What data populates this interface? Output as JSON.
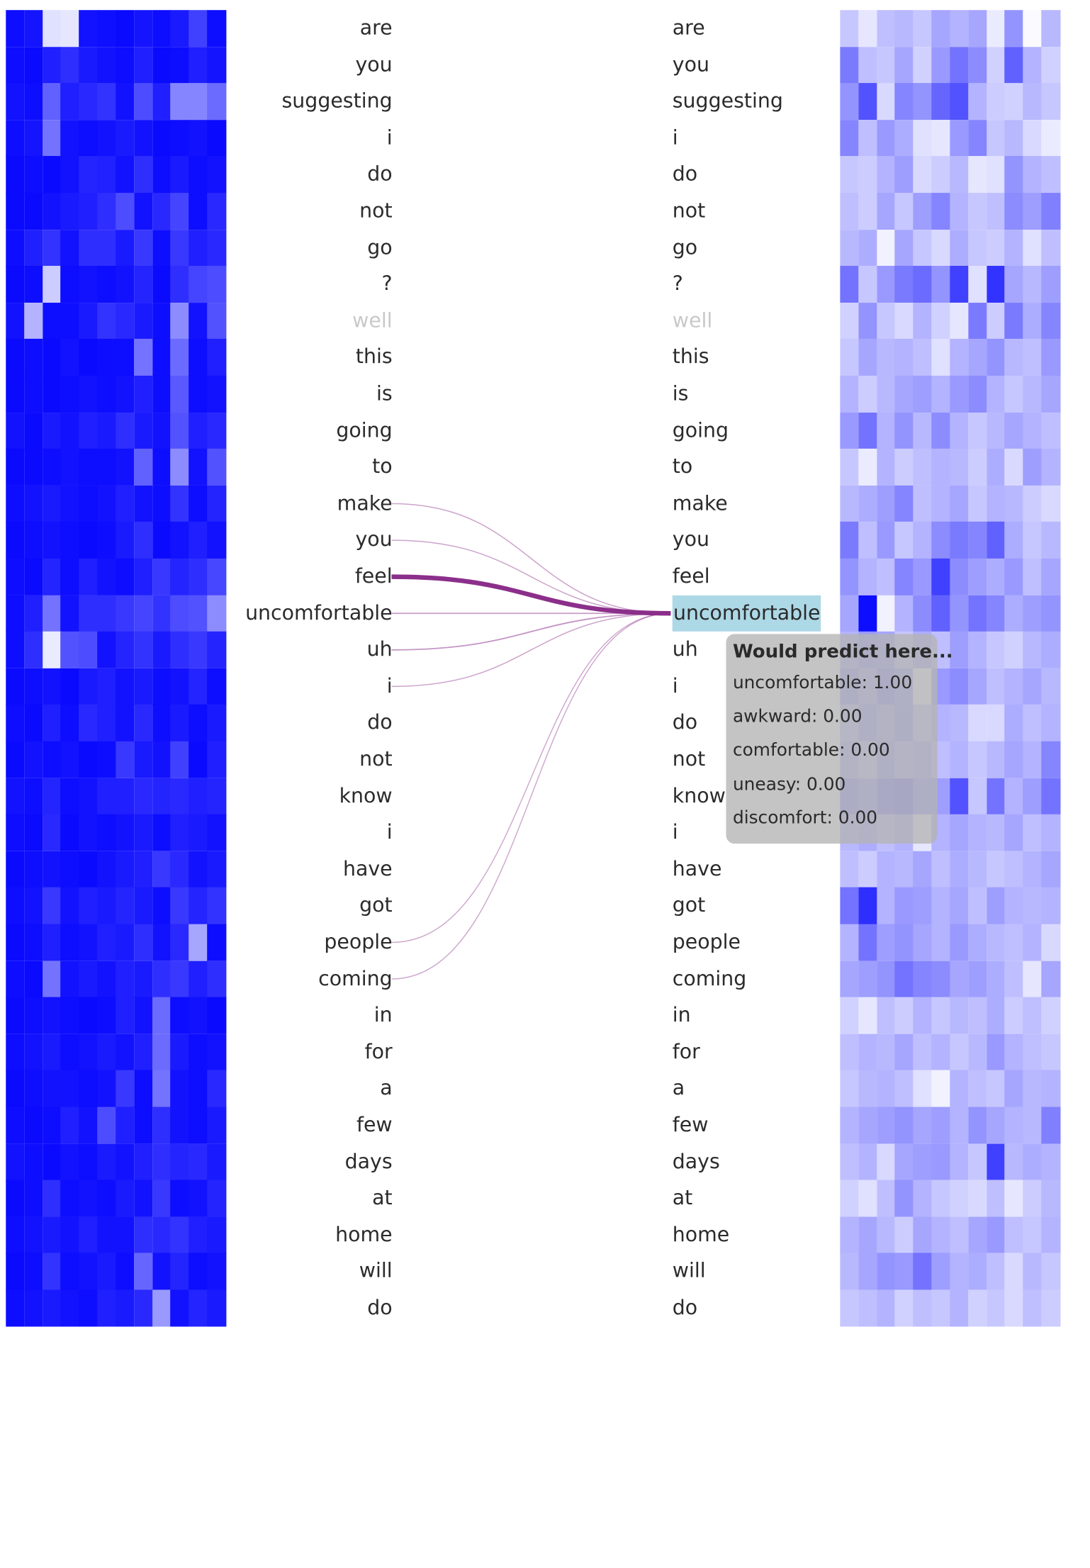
{
  "tokens": [
    "are",
    "you",
    "suggesting",
    "i",
    "do",
    "not",
    "go",
    "?",
    "well",
    "this",
    "is",
    "going",
    "to",
    "make",
    "you",
    "feel",
    "uncomfortable",
    "uh",
    "i",
    "do",
    "not",
    "know",
    "i",
    "have",
    "got",
    "people",
    "coming",
    "in",
    "for",
    "a",
    "few",
    "days",
    "at",
    "home",
    "will",
    "do"
  ],
  "faded_token_index": 8,
  "selected_token_index": 16,
  "links": [
    {
      "source_index": 13,
      "weight": 0.25
    },
    {
      "source_index": 14,
      "weight": 0.25
    },
    {
      "source_index": 15,
      "weight": 1.0
    },
    {
      "source_index": 16,
      "weight": 0.3
    },
    {
      "source_index": 17,
      "weight": 0.35
    },
    {
      "source_index": 18,
      "weight": 0.25
    },
    {
      "source_index": 25,
      "weight": 0.22
    },
    {
      "source_index": 26,
      "weight": 0.22
    }
  ],
  "link_color": "#8b2f8b",
  "heat_colors": {
    "left": "#0000ff",
    "right": "#0000ff",
    "base": "#ffffff"
  },
  "heatmap_left": [
    [
      0.95,
      0.92,
      0.12,
      0.1,
      0.93,
      0.94,
      0.96,
      0.92,
      0.95,
      0.9,
      0.75,
      0.95
    ],
    [
      0.95,
      0.96,
      0.88,
      0.82,
      0.9,
      0.93,
      0.95,
      0.88,
      0.96,
      0.95,
      0.88,
      0.92
    ],
    [
      0.93,
      0.95,
      0.62,
      0.88,
      0.84,
      0.8,
      0.93,
      0.7,
      0.88,
      0.48,
      0.48,
      0.58
    ],
    [
      0.95,
      0.92,
      0.55,
      0.93,
      0.95,
      0.93,
      0.9,
      0.93,
      0.96,
      0.95,
      0.93,
      0.96
    ],
    [
      0.96,
      0.95,
      0.96,
      0.93,
      0.86,
      0.87,
      0.93,
      0.82,
      0.95,
      0.9,
      0.95,
      0.93
    ],
    [
      0.96,
      0.96,
      0.93,
      0.9,
      0.88,
      0.82,
      0.7,
      0.93,
      0.84,
      0.73,
      0.95,
      0.84
    ],
    [
      0.95,
      0.88,
      0.8,
      0.93,
      0.82,
      0.82,
      0.9,
      0.78,
      0.95,
      0.78,
      0.88,
      0.84
    ],
    [
      0.96,
      0.95,
      0.2,
      0.95,
      0.93,
      0.95,
      0.93,
      0.86,
      0.96,
      0.82,
      0.73,
      0.7
    ],
    [
      0.93,
      0.3,
      0.95,
      0.95,
      0.9,
      0.8,
      0.84,
      0.9,
      0.95,
      0.45,
      0.93,
      0.68
    ],
    [
      0.96,
      0.95,
      0.96,
      0.93,
      0.96,
      0.95,
      0.95,
      0.55,
      0.95,
      0.58,
      0.95,
      0.88
    ],
    [
      0.96,
      0.95,
      0.96,
      0.95,
      0.93,
      0.95,
      0.93,
      0.88,
      0.95,
      0.65,
      0.95,
      0.93
    ],
    [
      0.93,
      0.96,
      0.9,
      0.93,
      0.88,
      0.9,
      0.82,
      0.9,
      0.93,
      0.68,
      0.88,
      0.84
    ],
    [
      0.96,
      0.96,
      0.95,
      0.93,
      0.95,
      0.95,
      0.93,
      0.62,
      0.95,
      0.45,
      0.93,
      0.68
    ],
    [
      0.95,
      0.93,
      0.9,
      0.93,
      0.95,
      0.93,
      0.88,
      0.93,
      0.95,
      0.8,
      0.95,
      0.86
    ],
    [
      0.96,
      0.95,
      0.93,
      0.95,
      0.96,
      0.95,
      0.9,
      0.82,
      0.96,
      0.93,
      0.88,
      0.93
    ],
    [
      0.95,
      0.96,
      0.86,
      0.95,
      0.88,
      0.93,
      0.95,
      0.88,
      0.78,
      0.86,
      0.82,
      0.72
    ],
    [
      0.95,
      0.88,
      0.55,
      0.93,
      0.82,
      0.82,
      0.78,
      0.73,
      0.8,
      0.7,
      0.68,
      0.45
    ],
    [
      0.95,
      0.82,
      0.08,
      0.68,
      0.7,
      0.93,
      0.86,
      0.8,
      0.9,
      0.82,
      0.78,
      0.86
    ],
    [
      0.96,
      0.95,
      0.93,
      0.96,
      0.9,
      0.88,
      0.93,
      0.9,
      0.95,
      0.93,
      0.86,
      0.95
    ],
    [
      0.95,
      0.96,
      0.88,
      0.95,
      0.84,
      0.88,
      0.93,
      0.84,
      0.95,
      0.9,
      0.95,
      0.9
    ],
    [
      0.96,
      0.93,
      0.95,
      0.93,
      0.96,
      0.95,
      0.78,
      0.9,
      0.93,
      0.75,
      0.96,
      0.88
    ],
    [
      0.93,
      0.95,
      0.86,
      0.95,
      0.93,
      0.88,
      0.88,
      0.84,
      0.86,
      0.84,
      0.88,
      0.86
    ],
    [
      0.95,
      0.96,
      0.84,
      0.96,
      0.93,
      0.95,
      0.93,
      0.9,
      0.95,
      0.88,
      0.9,
      0.93
    ],
    [
      0.96,
      0.95,
      0.93,
      0.95,
      0.96,
      0.93,
      0.9,
      0.88,
      0.78,
      0.84,
      0.93,
      0.9
    ],
    [
      0.95,
      0.93,
      0.78,
      0.93,
      0.88,
      0.9,
      0.86,
      0.9,
      0.95,
      0.78,
      0.86,
      0.8
    ],
    [
      0.96,
      0.95,
      0.88,
      0.95,
      0.93,
      0.88,
      0.9,
      0.82,
      0.93,
      0.84,
      0.35,
      0.95
    ],
    [
      0.95,
      0.96,
      0.55,
      0.93,
      0.9,
      0.93,
      0.88,
      0.9,
      0.82,
      0.78,
      0.88,
      0.82
    ],
    [
      0.96,
      0.95,
      0.93,
      0.95,
      0.96,
      0.95,
      0.88,
      0.93,
      0.58,
      0.95,
      0.93,
      0.96
    ],
    [
      0.95,
      0.93,
      0.9,
      0.95,
      0.93,
      0.9,
      0.93,
      0.88,
      0.58,
      0.9,
      0.95,
      0.93
    ],
    [
      0.96,
      0.95,
      0.93,
      0.93,
      0.95,
      0.93,
      0.78,
      0.95,
      0.55,
      0.93,
      0.95,
      0.84
    ],
    [
      0.95,
      0.96,
      0.95,
      0.88,
      0.93,
      0.7,
      0.88,
      0.95,
      0.82,
      0.93,
      0.95,
      0.9
    ],
    [
      0.93,
      0.95,
      0.96,
      0.93,
      0.95,
      0.9,
      0.93,
      0.88,
      0.82,
      0.86,
      0.84,
      0.9
    ],
    [
      0.96,
      0.95,
      0.82,
      0.95,
      0.93,
      0.95,
      0.9,
      0.93,
      0.78,
      0.95,
      0.93,
      0.86
    ],
    [
      0.95,
      0.93,
      0.9,
      0.93,
      0.88,
      0.93,
      0.93,
      0.82,
      0.84,
      0.8,
      0.88,
      0.9
    ],
    [
      0.96,
      0.95,
      0.8,
      0.95,
      0.93,
      0.9,
      0.95,
      0.6,
      0.93,
      0.86,
      0.95,
      0.93
    ],
    [
      0.95,
      0.93,
      0.9,
      0.93,
      0.95,
      0.88,
      0.9,
      0.84,
      0.4,
      0.93,
      0.86,
      0.9
    ]
  ],
  "heatmap_right": [
    [
      0.22,
      0.1,
      0.25,
      0.28,
      0.22,
      0.35,
      0.3,
      0.35,
      0.08,
      0.42,
      0.02,
      0.28
    ],
    [
      0.52,
      0.25,
      0.22,
      0.35,
      0.18,
      0.4,
      0.55,
      0.45,
      0.18,
      0.62,
      0.3,
      0.18
    ],
    [
      0.42,
      0.68,
      0.15,
      0.48,
      0.42,
      0.6,
      0.68,
      0.3,
      0.2,
      0.18,
      0.28,
      0.22
    ],
    [
      0.48,
      0.25,
      0.4,
      0.32,
      0.12,
      0.1,
      0.4,
      0.48,
      0.22,
      0.28,
      0.15,
      0.08
    ],
    [
      0.22,
      0.2,
      0.3,
      0.38,
      0.15,
      0.2,
      0.28,
      0.1,
      0.12,
      0.42,
      0.3,
      0.25
    ],
    [
      0.25,
      0.2,
      0.35,
      0.22,
      0.38,
      0.48,
      0.3,
      0.22,
      0.25,
      0.45,
      0.38,
      0.5
    ],
    [
      0.28,
      0.32,
      0.05,
      0.35,
      0.22,
      0.15,
      0.32,
      0.22,
      0.2,
      0.3,
      0.12,
      0.25
    ],
    [
      0.55,
      0.22,
      0.4,
      0.52,
      0.58,
      0.42,
      0.75,
      0.12,
      0.8,
      0.35,
      0.28,
      0.38
    ],
    [
      0.18,
      0.42,
      0.22,
      0.15,
      0.3,
      0.18,
      0.1,
      0.52,
      0.2,
      0.52,
      0.32,
      0.48
    ],
    [
      0.22,
      0.35,
      0.28,
      0.3,
      0.25,
      0.12,
      0.3,
      0.35,
      0.42,
      0.28,
      0.25,
      0.4
    ],
    [
      0.3,
      0.2,
      0.28,
      0.35,
      0.38,
      0.3,
      0.4,
      0.45,
      0.3,
      0.22,
      0.28,
      0.35
    ],
    [
      0.4,
      0.55,
      0.3,
      0.42,
      0.28,
      0.45,
      0.3,
      0.22,
      0.28,
      0.35,
      0.3,
      0.25
    ],
    [
      0.22,
      0.08,
      0.3,
      0.2,
      0.25,
      0.3,
      0.28,
      0.2,
      0.32,
      0.15,
      0.38,
      0.3
    ],
    [
      0.28,
      0.32,
      0.38,
      0.48,
      0.25,
      0.3,
      0.35,
      0.22,
      0.3,
      0.28,
      0.2,
      0.15
    ],
    [
      0.52,
      0.25,
      0.4,
      0.22,
      0.3,
      0.45,
      0.52,
      0.48,
      0.62,
      0.32,
      0.22,
      0.28
    ],
    [
      0.42,
      0.3,
      0.25,
      0.48,
      0.4,
      0.75,
      0.45,
      0.38,
      0.32,
      0.4,
      0.25,
      0.35
    ],
    [
      0.35,
      0.95,
      0.05,
      0.3,
      0.45,
      0.62,
      0.42,
      0.55,
      0.48,
      0.32,
      0.38,
      0.42
    ],
    [
      0.3,
      0.4,
      0.35,
      0.22,
      0.32,
      0.25,
      0.38,
      0.3,
      0.22,
      0.18,
      0.28,
      0.32
    ],
    [
      0.38,
      0.3,
      0.42,
      0.35,
      0.05,
      0.4,
      0.45,
      0.35,
      0.25,
      0.3,
      0.35,
      0.28
    ],
    [
      0.25,
      0.35,
      0.3,
      0.38,
      0.22,
      0.3,
      0.28,
      0.15,
      0.15,
      0.32,
      0.25,
      0.3
    ],
    [
      0.3,
      0.22,
      0.35,
      0.28,
      0.32,
      0.25,
      0.3,
      0.22,
      0.28,
      0.35,
      0.3,
      0.48
    ],
    [
      0.42,
      0.35,
      0.48,
      0.52,
      0.4,
      0.38,
      0.68,
      0.22,
      0.55,
      0.3,
      0.38,
      0.55
    ],
    [
      0.28,
      0.32,
      0.25,
      0.3,
      0.1,
      0.3,
      0.35,
      0.3,
      0.28,
      0.35,
      0.25,
      0.3
    ],
    [
      0.25,
      0.2,
      0.3,
      0.28,
      0.35,
      0.25,
      0.32,
      0.28,
      0.22,
      0.25,
      0.3,
      0.35
    ],
    [
      0.55,
      0.82,
      0.3,
      0.4,
      0.38,
      0.3,
      0.35,
      0.25,
      0.38,
      0.3,
      0.28,
      0.3
    ],
    [
      0.3,
      0.55,
      0.38,
      0.42,
      0.35,
      0.3,
      0.4,
      0.32,
      0.28,
      0.25,
      0.3,
      0.15
    ],
    [
      0.35,
      0.38,
      0.42,
      0.55,
      0.48,
      0.45,
      0.35,
      0.38,
      0.32,
      0.25,
      0.1,
      0.35
    ],
    [
      0.18,
      0.1,
      0.25,
      0.2,
      0.3,
      0.22,
      0.28,
      0.25,
      0.32,
      0.2,
      0.25,
      0.18
    ],
    [
      0.25,
      0.3,
      0.28,
      0.35,
      0.25,
      0.3,
      0.22,
      0.28,
      0.4,
      0.3,
      0.25,
      0.22
    ],
    [
      0.22,
      0.28,
      0.3,
      0.25,
      0.12,
      0.05,
      0.3,
      0.25,
      0.22,
      0.35,
      0.28,
      0.3
    ],
    [
      0.3,
      0.35,
      0.38,
      0.42,
      0.35,
      0.38,
      0.3,
      0.42,
      0.35,
      0.3,
      0.28,
      0.5
    ],
    [
      0.25,
      0.3,
      0.15,
      0.35,
      0.38,
      0.4,
      0.3,
      0.22,
      0.75,
      0.28,
      0.32,
      0.3
    ],
    [
      0.18,
      0.12,
      0.25,
      0.42,
      0.3,
      0.22,
      0.18,
      0.15,
      0.25,
      0.1,
      0.2,
      0.28
    ],
    [
      0.3,
      0.35,
      0.28,
      0.2,
      0.35,
      0.3,
      0.25,
      0.35,
      0.4,
      0.25,
      0.22,
      0.3
    ],
    [
      0.28,
      0.35,
      0.42,
      0.4,
      0.55,
      0.38,
      0.3,
      0.32,
      0.25,
      0.15,
      0.28,
      0.22
    ],
    [
      0.22,
      0.25,
      0.3,
      0.18,
      0.25,
      0.22,
      0.3,
      0.18,
      0.22,
      0.15,
      0.25,
      0.2
    ]
  ],
  "tooltip": {
    "title": "Would predict here...",
    "rows": [
      {
        "label": "uncomfortable: 1.00"
      },
      {
        "label": "awkward: 0.00"
      },
      {
        "label": "comfortable: 0.00"
      },
      {
        "label": "uneasy: 0.00"
      },
      {
        "label": "discomfort: 0.00"
      }
    ]
  }
}
